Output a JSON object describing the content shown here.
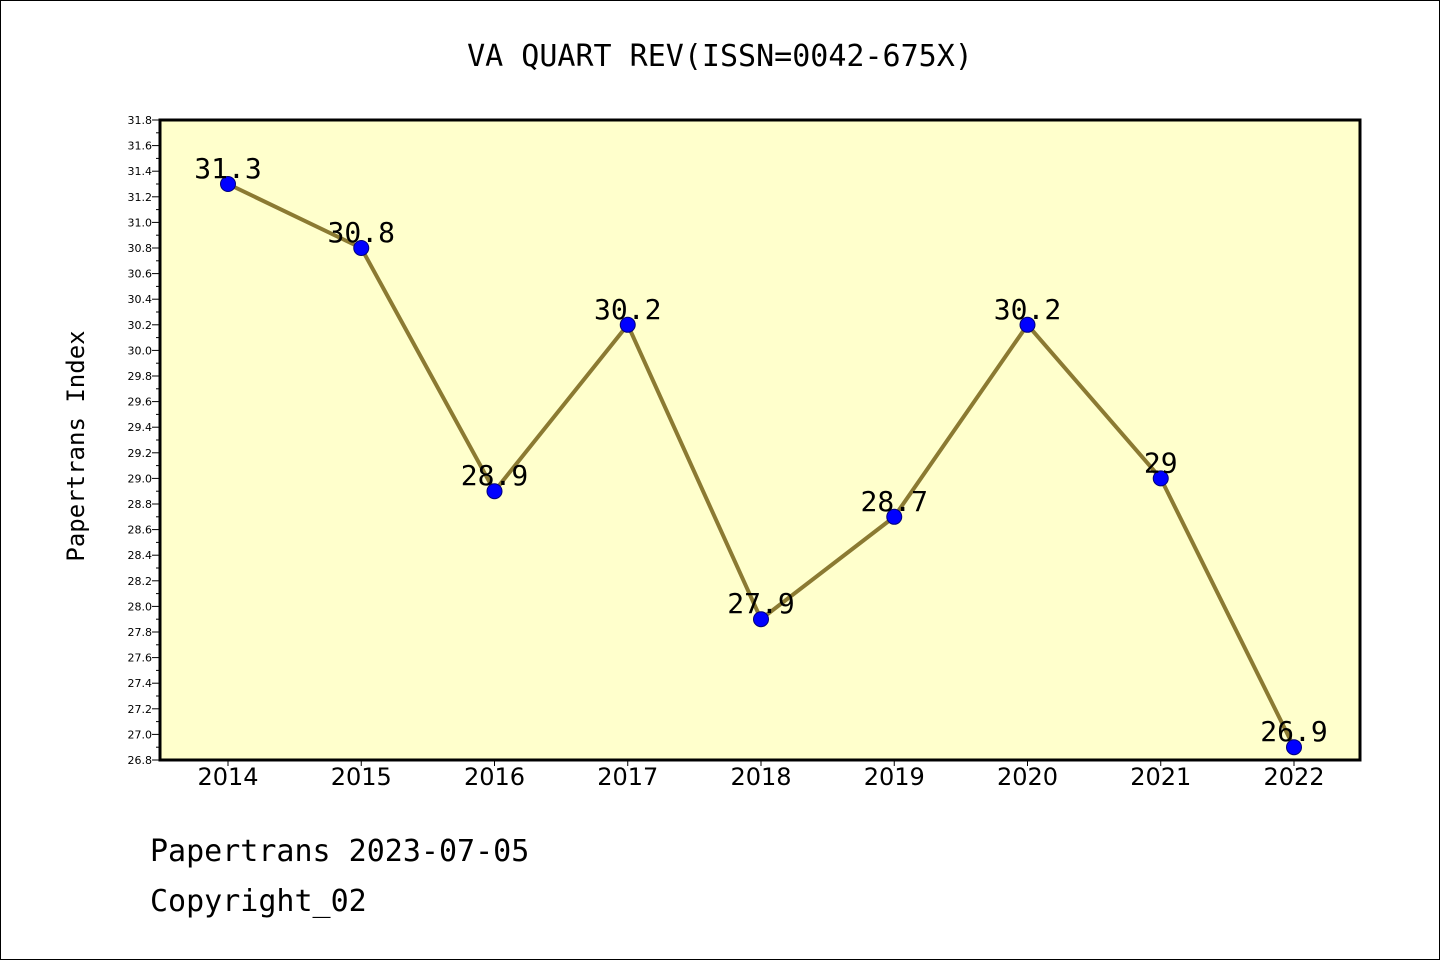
{
  "chart_data": {
    "type": "line",
    "title": "VA QUART REV(ISSN=0042-675X)",
    "xlabel": "",
    "ylabel": "Papertrans Index",
    "categories": [
      "2014",
      "2015",
      "2016",
      "2017",
      "2018",
      "2019",
      "2020",
      "2021",
      "2022"
    ],
    "values": [
      31.3,
      30.8,
      28.9,
      30.2,
      27.9,
      28.7,
      30.2,
      29,
      26.9
    ],
    "data_labels": [
      "31.3",
      "30.8",
      "28.9",
      "30.2",
      "27.9",
      "28.7",
      "30.2",
      "29",
      "26.9"
    ],
    "ylim": [
      26.8,
      31.8
    ],
    "y_major_ticks": [
      "26.8",
      "27.0",
      "27.2",
      "27.4",
      "27.6",
      "27.8",
      "28.0",
      "28.2",
      "28.4",
      "28.6",
      "28.8",
      "29.0",
      "29.2",
      "29.4",
      "29.6",
      "29.8",
      "30.0",
      "30.2",
      "30.4",
      "30.6",
      "30.8",
      "31.0",
      "31.2",
      "31.4",
      "31.6",
      "31.8"
    ],
    "grid": false,
    "legend": "none",
    "colors": {
      "plot_background": "#ffffcc",
      "line": "#8b7a32",
      "marker": "#0000ff",
      "marker_edge": "#00007a"
    }
  },
  "footer": {
    "line1": "Papertrans 2023-07-05",
    "line2": "Copyright_02"
  }
}
